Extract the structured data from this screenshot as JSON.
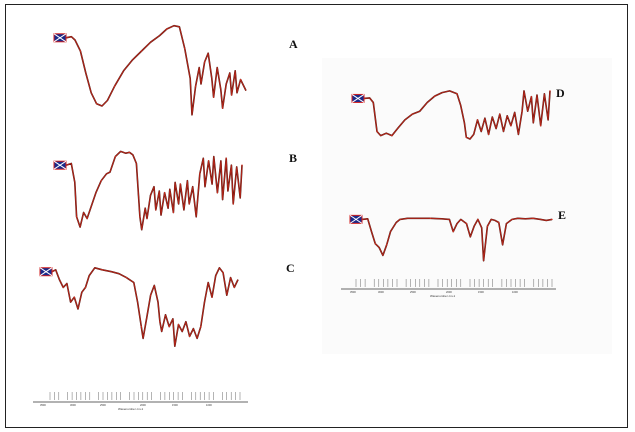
{
  "chart_data": [
    {
      "type": "line",
      "panel": "A",
      "label": "A",
      "xlabel": "",
      "ylabel": "",
      "series": [
        {
          "color": "#b02418",
          "values": [
            [
              0.0,
              0.82
            ],
            [
              0.03,
              0.83
            ],
            [
              0.05,
              0.8
            ],
            [
              0.08,
              0.7
            ],
            [
              0.11,
              0.5
            ],
            [
              0.14,
              0.32
            ],
            [
              0.17,
              0.22
            ],
            [
              0.2,
              0.2
            ],
            [
              0.23,
              0.25
            ],
            [
              0.27,
              0.38
            ],
            [
              0.32,
              0.52
            ],
            [
              0.37,
              0.62
            ],
            [
              0.42,
              0.7
            ],
            [
              0.47,
              0.78
            ],
            [
              0.52,
              0.84
            ],
            [
              0.56,
              0.9
            ],
            [
              0.6,
              0.93
            ],
            [
              0.63,
              0.92
            ],
            [
              0.66,
              0.72
            ],
            [
              0.69,
              0.45
            ],
            [
              0.7,
              0.12
            ],
            [
              0.72,
              0.38
            ],
            [
              0.74,
              0.55
            ],
            [
              0.75,
              0.4
            ],
            [
              0.77,
              0.6
            ],
            [
              0.79,
              0.68
            ],
            [
              0.81,
              0.45
            ],
            [
              0.82,
              0.28
            ],
            [
              0.84,
              0.55
            ],
            [
              0.86,
              0.35
            ],
            [
              0.87,
              0.18
            ],
            [
              0.89,
              0.4
            ],
            [
              0.91,
              0.5
            ],
            [
              0.92,
              0.3
            ],
            [
              0.94,
              0.52
            ],
            [
              0.95,
              0.32
            ],
            [
              0.97,
              0.44
            ],
            [
              1.0,
              0.34
            ]
          ]
        }
      ]
    },
    {
      "type": "line",
      "panel": "B",
      "label": "B",
      "xlabel": "",
      "ylabel": "",
      "series": [
        {
          "color": "#b02418",
          "values": [
            [
              0.0,
              0.8
            ],
            [
              0.03,
              0.82
            ],
            [
              0.05,
              0.6
            ],
            [
              0.06,
              0.2
            ],
            [
              0.08,
              0.08
            ],
            [
              0.1,
              0.25
            ],
            [
              0.12,
              0.18
            ],
            [
              0.14,
              0.3
            ],
            [
              0.17,
              0.48
            ],
            [
              0.2,
              0.62
            ],
            [
              0.23,
              0.7
            ],
            [
              0.25,
              0.72
            ],
            [
              0.28,
              0.9
            ],
            [
              0.31,
              0.96
            ],
            [
              0.34,
              0.94
            ],
            [
              0.36,
              0.95
            ],
            [
              0.38,
              0.92
            ],
            [
              0.4,
              0.82
            ],
            [
              0.42,
              0.2
            ],
            [
              0.43,
              0.05
            ],
            [
              0.45,
              0.3
            ],
            [
              0.46,
              0.18
            ],
            [
              0.48,
              0.45
            ],
            [
              0.5,
              0.55
            ],
            [
              0.51,
              0.28
            ],
            [
              0.53,
              0.5
            ],
            [
              0.54,
              0.22
            ],
            [
              0.56,
              0.48
            ],
            [
              0.58,
              0.3
            ],
            [
              0.59,
              0.52
            ],
            [
              0.61,
              0.25
            ],
            [
              0.62,
              0.6
            ],
            [
              0.64,
              0.35
            ],
            [
              0.65,
              0.58
            ],
            [
              0.67,
              0.28
            ],
            [
              0.69,
              0.62
            ],
            [
              0.7,
              0.35
            ],
            [
              0.72,
              0.55
            ],
            [
              0.74,
              0.2
            ],
            [
              0.76,
              0.7
            ],
            [
              0.78,
              0.88
            ],
            [
              0.79,
              0.55
            ],
            [
              0.81,
              0.85
            ],
            [
              0.83,
              0.58
            ],
            [
              0.84,
              0.9
            ],
            [
              0.86,
              0.48
            ],
            [
              0.88,
              0.85
            ],
            [
              0.89,
              0.4
            ],
            [
              0.91,
              0.88
            ],
            [
              0.92,
              0.5
            ],
            [
              0.94,
              0.8
            ],
            [
              0.95,
              0.35
            ],
            [
              0.97,
              0.78
            ],
            [
              0.99,
              0.42
            ],
            [
              1.0,
              0.8
            ]
          ]
        }
      ]
    },
    {
      "type": "line",
      "panel": "C",
      "label": "C",
      "xlabel": "",
      "ylabel": "",
      "series": [
        {
          "color": "#b02418",
          "values": [
            [
              0.0,
              0.86
            ],
            [
              0.02,
              0.88
            ],
            [
              0.04,
              0.78
            ],
            [
              0.06,
              0.7
            ],
            [
              0.08,
              0.74
            ],
            [
              0.1,
              0.55
            ],
            [
              0.12,
              0.6
            ],
            [
              0.14,
              0.48
            ],
            [
              0.16,
              0.65
            ],
            [
              0.18,
              0.7
            ],
            [
              0.2,
              0.82
            ],
            [
              0.23,
              0.9
            ],
            [
              0.27,
              0.88
            ],
            [
              0.32,
              0.86
            ],
            [
              0.36,
              0.84
            ],
            [
              0.4,
              0.8
            ],
            [
              0.44,
              0.75
            ],
            [
              0.46,
              0.55
            ],
            [
              0.48,
              0.3
            ],
            [
              0.49,
              0.18
            ],
            [
              0.51,
              0.4
            ],
            [
              0.53,
              0.62
            ],
            [
              0.55,
              0.72
            ],
            [
              0.57,
              0.55
            ],
            [
              0.58,
              0.35
            ],
            [
              0.59,
              0.25
            ],
            [
              0.61,
              0.42
            ],
            [
              0.63,
              0.3
            ],
            [
              0.65,
              0.38
            ],
            [
              0.66,
              0.1
            ],
            [
              0.68,
              0.32
            ],
            [
              0.7,
              0.25
            ],
            [
              0.72,
              0.35
            ],
            [
              0.74,
              0.2
            ],
            [
              0.76,
              0.28
            ],
            [
              0.78,
              0.18
            ],
            [
              0.8,
              0.3
            ],
            [
              0.82,
              0.55
            ],
            [
              0.84,
              0.75
            ],
            [
              0.86,
              0.6
            ],
            [
              0.88,
              0.82
            ],
            [
              0.9,
              0.9
            ],
            [
              0.92,
              0.85
            ],
            [
              0.94,
              0.62
            ],
            [
              0.96,
              0.8
            ],
            [
              0.98,
              0.7
            ],
            [
              1.0,
              0.78
            ]
          ]
        }
      ]
    },
    {
      "type": "line",
      "panel": "D",
      "label": "D",
      "xlabel": "",
      "ylabel": "",
      "series": [
        {
          "color": "#b02418",
          "values": [
            [
              0.0,
              0.82
            ],
            [
              0.03,
              0.83
            ],
            [
              0.05,
              0.75
            ],
            [
              0.07,
              0.25
            ],
            [
              0.09,
              0.18
            ],
            [
              0.12,
              0.22
            ],
            [
              0.15,
              0.18
            ],
            [
              0.18,
              0.3
            ],
            [
              0.22,
              0.45
            ],
            [
              0.26,
              0.55
            ],
            [
              0.3,
              0.6
            ],
            [
              0.34,
              0.75
            ],
            [
              0.38,
              0.86
            ],
            [
              0.42,
              0.92
            ],
            [
              0.46,
              0.95
            ],
            [
              0.5,
              0.9
            ],
            [
              0.52,
              0.7
            ],
            [
              0.54,
              0.4
            ],
            [
              0.55,
              0.15
            ],
            [
              0.57,
              0.12
            ],
            [
              0.59,
              0.2
            ],
            [
              0.61,
              0.45
            ],
            [
              0.63,
              0.25
            ],
            [
              0.65,
              0.48
            ],
            [
              0.67,
              0.2
            ],
            [
              0.69,
              0.5
            ],
            [
              0.71,
              0.3
            ],
            [
              0.73,
              0.55
            ],
            [
              0.75,
              0.25
            ],
            [
              0.77,
              0.52
            ],
            [
              0.79,
              0.35
            ],
            [
              0.81,
              0.58
            ],
            [
              0.83,
              0.2
            ],
            [
              0.85,
              0.6
            ],
            [
              0.86,
              0.95
            ],
            [
              0.88,
              0.6
            ],
            [
              0.9,
              0.85
            ],
            [
              0.91,
              0.4
            ],
            [
              0.93,
              0.88
            ],
            [
              0.95,
              0.35
            ],
            [
              0.97,
              0.9
            ],
            [
              0.99,
              0.45
            ],
            [
              1.0,
              0.95
            ]
          ]
        }
      ]
    },
    {
      "type": "line",
      "panel": "E",
      "label": "E",
      "xlabel": "",
      "ylabel": "Wavenumber cm-1",
      "series": [
        {
          "color": "#b02418",
          "values": [
            [
              0.0,
              0.88
            ],
            [
              0.03,
              0.89
            ],
            [
              0.05,
              0.65
            ],
            [
              0.07,
              0.42
            ],
            [
              0.09,
              0.35
            ],
            [
              0.11,
              0.2
            ],
            [
              0.13,
              0.4
            ],
            [
              0.15,
              0.65
            ],
            [
              0.18,
              0.82
            ],
            [
              0.2,
              0.88
            ],
            [
              0.24,
              0.9
            ],
            [
              0.3,
              0.9
            ],
            [
              0.36,
              0.9
            ],
            [
              0.42,
              0.89
            ],
            [
              0.46,
              0.88
            ],
            [
              0.48,
              0.65
            ],
            [
              0.5,
              0.8
            ],
            [
              0.52,
              0.88
            ],
            [
              0.55,
              0.8
            ],
            [
              0.57,
              0.55
            ],
            [
              0.59,
              0.75
            ],
            [
              0.61,
              0.88
            ],
            [
              0.63,
              0.72
            ],
            [
              0.64,
              0.1
            ],
            [
              0.66,
              0.75
            ],
            [
              0.68,
              0.88
            ],
            [
              0.7,
              0.86
            ],
            [
              0.72,
              0.82
            ],
            [
              0.74,
              0.4
            ],
            [
              0.76,
              0.8
            ],
            [
              0.79,
              0.88
            ],
            [
              0.82,
              0.9
            ],
            [
              0.86,
              0.89
            ],
            [
              0.9,
              0.9
            ],
            [
              0.94,
              0.88
            ],
            [
              0.97,
              0.86
            ],
            [
              1.0,
              0.88
            ]
          ]
        }
      ],
      "x_ticks": [
        "3500",
        "3000",
        "2500",
        "2000",
        "1500",
        "1000"
      ]
    }
  ],
  "page": {
    "left_axis_ticks": [
      "3500",
      "3000",
      "2500",
      "2000",
      "1500",
      "1000"
    ],
    "left_axis_title": "Wavenumber cm-1"
  }
}
